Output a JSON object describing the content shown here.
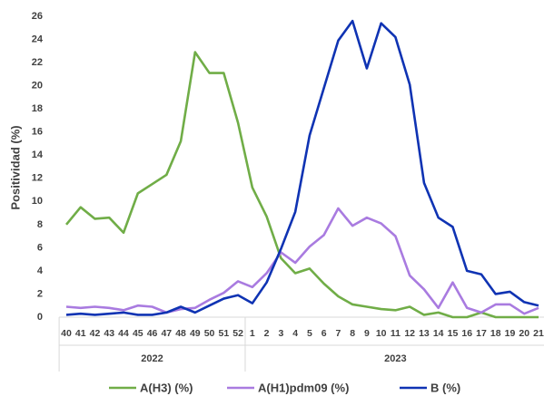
{
  "chart_data": {
    "type": "line",
    "y_label": "Positividad (%)",
    "categories": [
      "40",
      "41",
      "42",
      "43",
      "44",
      "45",
      "46",
      "47",
      "48",
      "49",
      "50",
      "51",
      "52",
      "1",
      "2",
      "3",
      "4",
      "5",
      "6",
      "7",
      "8",
      "9",
      "10",
      "11",
      "12",
      "13",
      "14",
      "15",
      "16",
      "17",
      "18",
      "19",
      "20",
      "21"
    ],
    "groups": [
      {
        "label": "2022",
        "span": 13
      },
      {
        "label": "2023",
        "span": 21
      }
    ],
    "series": [
      {
        "name": "A(H3) (%)",
        "color": "#70ad47",
        "values": [
          8.0,
          9.5,
          8.5,
          8.6,
          7.3,
          10.7,
          11.5,
          12.3,
          15.2,
          22.9,
          21.1,
          21.1,
          16.8,
          11.2,
          8.7,
          5.1,
          3.8,
          4.2,
          2.9,
          1.8,
          1.1,
          0.9,
          0.7,
          0.6,
          0.9,
          0.2,
          0.4,
          0,
          0,
          0.4,
          0,
          0,
          0,
          0
        ]
      },
      {
        "name": "A(H1)pdm09 (%)",
        "color": "#a97be0",
        "values": [
          0.9,
          0.8,
          0.9,
          0.8,
          0.6,
          1.0,
          0.9,
          0.4,
          0.7,
          0.8,
          1.5,
          2.1,
          3.1,
          2.6,
          3.8,
          5.6,
          4.7,
          6.1,
          7.1,
          9.4,
          7.9,
          8.6,
          8.1,
          7.0,
          3.6,
          2.4,
          0.8,
          3.0,
          0.8,
          0.4,
          1.1,
          1.1,
          0.3,
          0.8
        ]
      },
      {
        "name": "B (%)",
        "color": "#0f33b3",
        "values": [
          0.2,
          0.3,
          0.2,
          0.3,
          0.4,
          0.2,
          0.2,
          0.4,
          0.9,
          0.4,
          1.0,
          1.6,
          1.9,
          1.2,
          3.0,
          5.9,
          9.1,
          15.7,
          19.8,
          23.9,
          25.6,
          21.5,
          25.4,
          24.2,
          20.1,
          11.6,
          8.6,
          7.8,
          4.0,
          3.7,
          2.0,
          2.2,
          1.3,
          1.0
        ]
      }
    ],
    "ylim": [
      0,
      26
    ],
    "yticks": [
      0,
      2,
      4,
      6,
      8,
      10,
      12,
      14,
      16,
      18,
      20,
      22,
      24,
      26
    ],
    "grid": false,
    "legend": "bottom"
  }
}
